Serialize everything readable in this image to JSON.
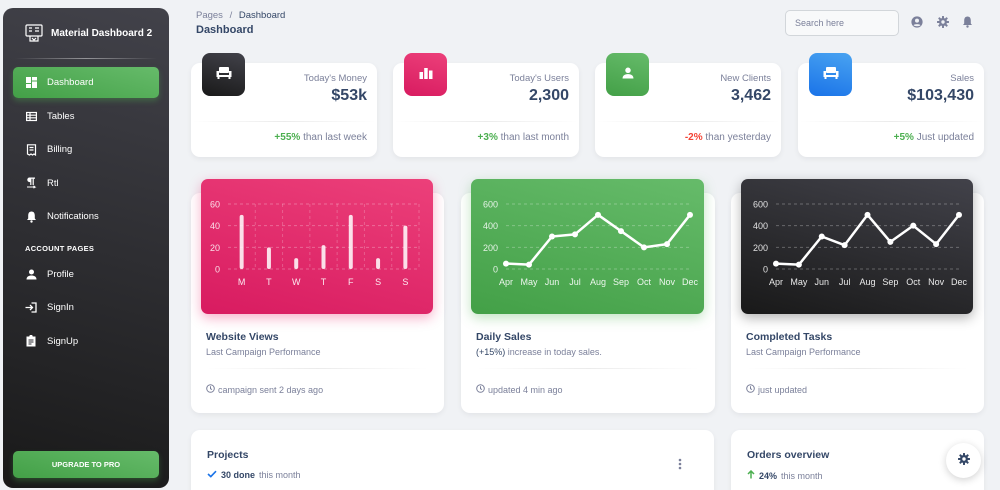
{
  "brand": {
    "name": "Material Dashboard 2"
  },
  "sidebar": {
    "items": [
      {
        "label": "Dashboard",
        "icon": "dashboard-icon",
        "active": true
      },
      {
        "label": "Tables",
        "icon": "table-icon"
      },
      {
        "label": "Billing",
        "icon": "receipt-icon"
      },
      {
        "label": "Rtl",
        "icon": "format-textdirection-icon"
      },
      {
        "label": "Notifications",
        "icon": "bell-icon"
      }
    ],
    "section_title": "ACCOUNT PAGES",
    "account_items": [
      {
        "label": "Profile",
        "icon": "person-icon"
      },
      {
        "label": "SignIn",
        "icon": "login-icon"
      },
      {
        "label": "SignUp",
        "icon": "assignment-icon"
      }
    ],
    "upgrade_label": "UPGRADE TO PRO"
  },
  "topbar": {
    "breadcrumb_root": "Pages",
    "breadcrumb_sep": "/",
    "breadcrumb_current": "Dashboard",
    "page_title": "Dashboard",
    "search_placeholder": "Search here"
  },
  "stats": [
    {
      "label": "Today's Money",
      "value": "$53k",
      "delta": "+55%",
      "delta_text": "than last week",
      "trend": "pos",
      "color": "#262628",
      "icon": "weekend-icon"
    },
    {
      "label": "Today's Users",
      "value": "2,300",
      "delta": "+3%",
      "delta_text": "than last month",
      "trend": "pos",
      "color": "#e91e63",
      "icon": "leaderboard-icon"
    },
    {
      "label": "New Clients",
      "value": "3,462",
      "delta": "-2%",
      "delta_text": "than yesterday",
      "trend": "neg",
      "color": "#4caf50",
      "icon": "person-icon"
    },
    {
      "label": "Sales",
      "value": "$103,430",
      "delta": "+5%",
      "delta_text": "Just updated",
      "trend": "pos",
      "color": "#1a73e8",
      "icon": "weekend-icon"
    }
  ],
  "chart_cards": [
    {
      "title": "Website Views",
      "subtitle_bold": "",
      "subtitle": "Last Campaign Performance",
      "footer": "campaign sent 2 days ago"
    },
    {
      "title": "Daily Sales",
      "subtitle_bold": "(+15%)",
      "subtitle": "increase in today sales.",
      "footer": "updated 4 min ago"
    },
    {
      "title": "Completed Tasks",
      "subtitle_bold": "",
      "subtitle": "Last Campaign Performance",
      "footer": "just updated"
    }
  ],
  "chart_data": [
    {
      "type": "bar",
      "categories": [
        "M",
        "T",
        "W",
        "T",
        "F",
        "S",
        "S"
      ],
      "values": [
        50,
        20,
        10,
        22,
        50,
        10,
        40
      ],
      "ylim": [
        0,
        60
      ],
      "yticks": [
        "0",
        "20",
        "40",
        "60"
      ],
      "grid": true,
      "background": "#e91e63"
    },
    {
      "type": "line",
      "categories": [
        "Apr",
        "May",
        "Jun",
        "Jul",
        "Aug",
        "Sep",
        "Oct",
        "Nov",
        "Dec"
      ],
      "values": [
        50,
        40,
        300,
        320,
        500,
        350,
        200,
        230,
        500
      ],
      "ylim": [
        0,
        600
      ],
      "yticks": [
        "0",
        "200",
        "400",
        "600"
      ],
      "grid": true,
      "background": "#4caf50"
    },
    {
      "type": "line",
      "categories": [
        "Apr",
        "May",
        "Jun",
        "Jul",
        "Aug",
        "Sep",
        "Oct",
        "Nov",
        "Dec"
      ],
      "values": [
        50,
        40,
        300,
        220,
        500,
        250,
        400,
        230,
        500
      ],
      "ylim": [
        0,
        600
      ],
      "yticks": [
        "0",
        "200",
        "400",
        "600"
      ],
      "grid": true,
      "background": "#262628"
    }
  ],
  "projects": {
    "title": "Projects",
    "done_count": "30 done",
    "done_text": "this month"
  },
  "orders": {
    "title": "Orders overview",
    "delta": "24%",
    "delta_text": "this month"
  }
}
